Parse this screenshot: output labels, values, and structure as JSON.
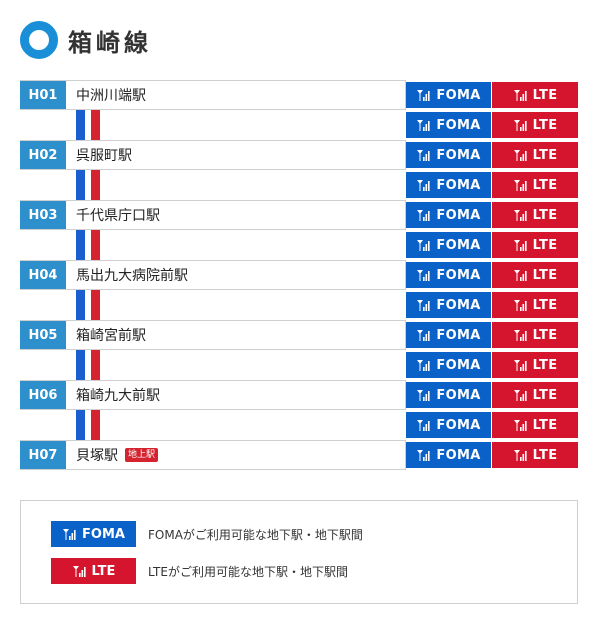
{
  "title": "箱崎線",
  "stations": [
    {
      "code": "H01",
      "name": "中洲川端駅",
      "badge": ""
    },
    {
      "code": "H02",
      "name": "呉服町駅",
      "badge": ""
    },
    {
      "code": "H03",
      "name": "千代県庁口駅",
      "badge": ""
    },
    {
      "code": "H04",
      "name": "馬出九大病院前駅",
      "badge": ""
    },
    {
      "code": "H05",
      "name": "箱崎宮前駅",
      "badge": ""
    },
    {
      "code": "H06",
      "name": "箱崎九大前駅",
      "badge": ""
    },
    {
      "code": "H07",
      "name": "貝塚駅",
      "badge": "地上駅"
    }
  ],
  "foma_label": "FOMA",
  "lte_label": "LTE",
  "legend": [
    {
      "label": "FOMA",
      "text": "FOMAがご利用可能な地下駅・地下駅間",
      "type": "foma"
    },
    {
      "label": "LTE",
      "text": "LTEがご利用可能な地下駅・地下駅間",
      "type": "lte"
    }
  ],
  "colors": {
    "line_blue": "#1a8fd8",
    "foma": "#0a62c8",
    "lte": "#d5142e",
    "code_bg": "#2d8fcb"
  },
  "icons": {
    "signal": "antenna-signal-icon"
  }
}
